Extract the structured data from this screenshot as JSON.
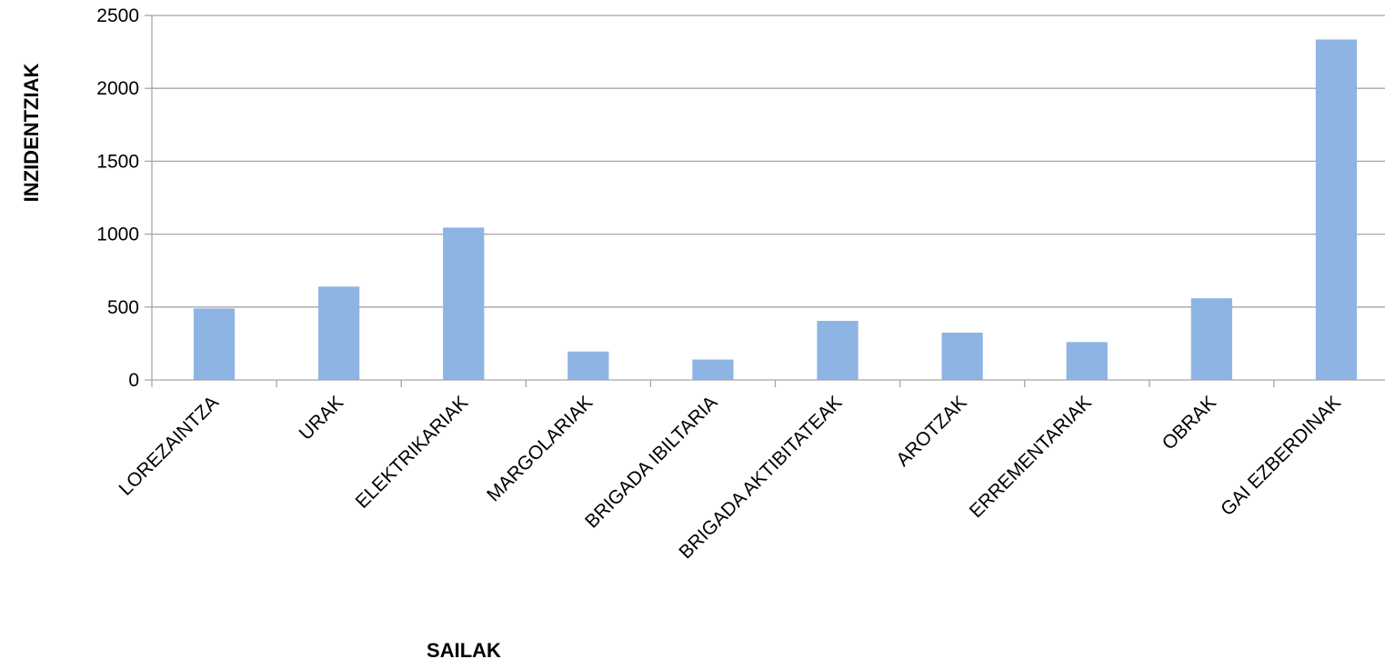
{
  "chart_data": {
    "type": "bar",
    "title": "",
    "xlabel": "SAILAK",
    "ylabel": "INZIDENTZIAK",
    "categories": [
      "LOREZAINTZA",
      "URAK",
      "ELEKTRIKARIAK",
      "MARGOLARIAK",
      "BRIGADA IBILTARIA",
      "BRIGADA AKTIBITATEAK",
      "AROTZAK",
      "ERREMENTARIAK",
      "OBRAK",
      "GAI EZBERDINAK"
    ],
    "values": [
      490,
      640,
      1045,
      195,
      140,
      405,
      325,
      260,
      560,
      2335
    ],
    "ylim": [
      0,
      2500
    ],
    "yticks": [
      0,
      500,
      1000,
      1500,
      2000,
      2500
    ],
    "grid": true,
    "legend": "none",
    "colors": {
      "bar": "#8eb4e3",
      "grid": "#a6a6a6",
      "axis": "#a6a6a6"
    }
  }
}
